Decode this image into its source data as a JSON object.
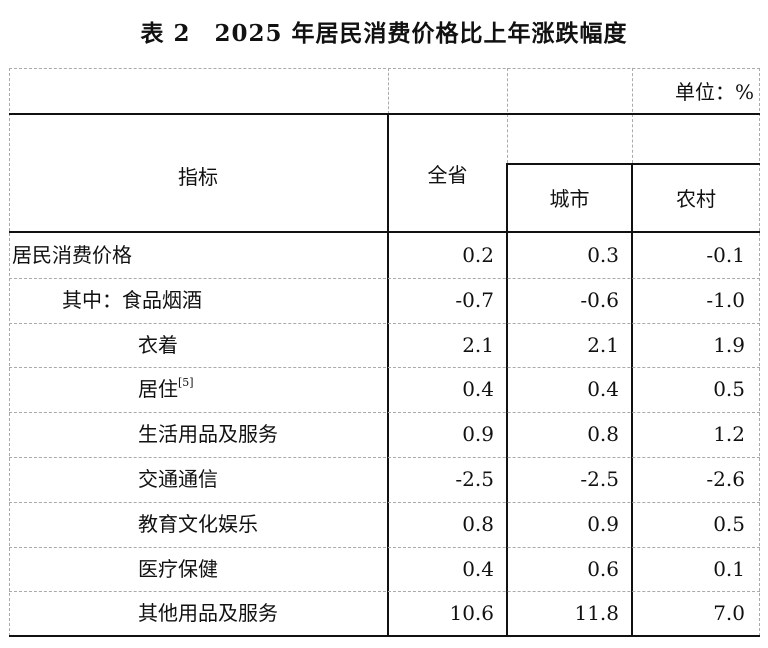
{
  "title": "表 2　2025 年居民消费价格比上年涨跌幅度",
  "unit": "单位：%",
  "headers": {
    "indicator": "指标",
    "province": "全省",
    "urban": "城市",
    "rural": "农村"
  },
  "rows": [
    {
      "label": "居民消费价格",
      "note": "",
      "province": "0.2",
      "urban": "0.3",
      "rural": "-0.1"
    },
    {
      "label": "其中：食品烟酒",
      "note": "",
      "province": "-0.7",
      "urban": "-0.6",
      "rural": "-1.0"
    },
    {
      "label": "衣着",
      "note": "",
      "province": "2.1",
      "urban": "2.1",
      "rural": "1.9"
    },
    {
      "label": "居住",
      "note": "[5]",
      "province": "0.4",
      "urban": "0.4",
      "rural": "0.5"
    },
    {
      "label": "生活用品及服务",
      "note": "",
      "province": "0.9",
      "urban": "0.8",
      "rural": "1.2"
    },
    {
      "label": "交通通信",
      "note": "",
      "province": "-2.5",
      "urban": "-2.5",
      "rural": "-2.6"
    },
    {
      "label": "教育文化娱乐",
      "note": "",
      "province": "0.8",
      "urban": "0.9",
      "rural": "0.5"
    },
    {
      "label": "医疗保健",
      "note": "",
      "province": "0.4",
      "urban": "0.6",
      "rural": "0.1"
    },
    {
      "label": "其他用品及服务",
      "note": "",
      "province": "10.6",
      "urban": "11.8",
      "rural": "7.0"
    }
  ]
}
